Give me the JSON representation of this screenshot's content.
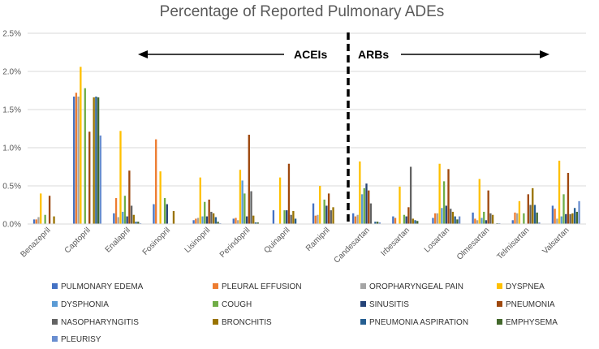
{
  "chart_data": {
    "type": "bar",
    "title": "Percentage of Reported Pulmonary ADEs",
    "xlabel": "",
    "ylabel": "",
    "ylim": [
      0,
      2.5
    ],
    "yticks": [
      "0.0%",
      "0.5%",
      "1.0%",
      "1.5%",
      "2.0%",
      "2.5%"
    ],
    "categories": [
      "Benazepril",
      "Captopril",
      "Enalapril",
      "Fosinopril",
      "Lisinopril",
      "Perindopril",
      "Quinapril",
      "Ramipril",
      "Candesartan",
      "Irbesartan",
      "Losartan",
      "Olmesartan",
      "Telmisartan",
      "Valsartan"
    ],
    "annotations": {
      "acei_label": "ACEIs",
      "arb_label": "ARBs"
    },
    "legend_position": "bottom",
    "series": [
      {
        "name": "PULMONARY EDEMA",
        "color": "#4472C4",
        "values": [
          0.06,
          1.67,
          0.14,
          0.26,
          0.05,
          0.07,
          0.18,
          0.27,
          0.14,
          0.1,
          0.08,
          0.15,
          0.05,
          0.24
        ]
      },
      {
        "name": "PLEURAL EFFUSION",
        "color": "#ED7D31",
        "values": [
          0.06,
          1.72,
          0.34,
          1.11,
          0.07,
          0.08,
          0.0,
          0.11,
          0.1,
          0.08,
          0.14,
          0.07,
          0.15,
          0.2
        ]
      },
      {
        "name": "OROPHARYNGEAL PAIN",
        "color": "#A5A5A5",
        "values": [
          0.09,
          1.67,
          0.09,
          0.0,
          0.08,
          0.05,
          0.0,
          0.12,
          0.12,
          0.0,
          0.14,
          0.05,
          0.14,
          0.07
        ]
      },
      {
        "name": "DYSPNEA",
        "color": "#FFC000",
        "values": [
          0.4,
          2.06,
          1.22,
          0.69,
          0.61,
          0.71,
          0.61,
          0.5,
          0.82,
          0.49,
          0.79,
          0.59,
          0.3,
          0.83
        ]
      },
      {
        "name": "DYSPHONIA",
        "color": "#5B9BD5",
        "values": [
          0.0,
          0.0,
          0.16,
          0.0,
          0.1,
          0.57,
          0.0,
          0.0,
          0.39,
          0.0,
          0.21,
          0.08,
          0.0,
          0.1
        ]
      },
      {
        "name": "COUGH",
        "color": "#70AD47",
        "values": [
          0.12,
          1.78,
          0.37,
          0.34,
          0.29,
          0.4,
          0.18,
          0.32,
          0.47,
          0.12,
          0.56,
          0.16,
          0.14,
          0.39
        ]
      },
      {
        "name": "SINUSITIS",
        "color": "#264478",
        "values": [
          0.0,
          0.0,
          0.1,
          0.26,
          0.1,
          0.1,
          0.18,
          0.24,
          0.53,
          0.1,
          0.24,
          0.05,
          0.0,
          0.13
        ]
      },
      {
        "name": "PNEUMONIA",
        "color": "#9E480E",
        "values": [
          0.37,
          1.21,
          0.7,
          0.0,
          0.32,
          1.17,
          0.79,
          0.4,
          0.44,
          0.22,
          0.72,
          0.44,
          0.39,
          0.67
        ]
      },
      {
        "name": "NASOPHARYNGITIS",
        "color": "#636363",
        "values": [
          0.0,
          0.0,
          0.24,
          0.0,
          0.16,
          0.43,
          0.12,
          0.18,
          0.27,
          0.75,
          0.2,
          0.14,
          0.25,
          0.13
        ]
      },
      {
        "name": "BRONCHITIS",
        "color": "#997300",
        "values": [
          0.1,
          1.66,
          0.12,
          0.17,
          0.14,
          0.11,
          0.17,
          0.22,
          0.0,
          0.07,
          0.16,
          0.12,
          0.47,
          0.14
        ]
      },
      {
        "name": "PNEUMONIA ASPIRATION",
        "color": "#255E91",
        "values": [
          0.0,
          1.67,
          0.03,
          0.0,
          0.09,
          0.02,
          0.07,
          0.0,
          0.03,
          0.05,
          0.1,
          0.0,
          0.25,
          0.21
        ]
      },
      {
        "name": "EMPHYSEMA",
        "color": "#43682B",
        "values": [
          0.0,
          1.66,
          0.03,
          0.0,
          0.03,
          0.02,
          0.0,
          0.0,
          0.03,
          0.04,
          0.06,
          0.01,
          0.15,
          0.16
        ]
      },
      {
        "name": "PLEURISY",
        "color": "#698ED0",
        "values": [
          0.0,
          1.16,
          0.01,
          0.0,
          0.01,
          0.0,
          0.0,
          0.0,
          0.02,
          0.0,
          0.1,
          0.01,
          0.02,
          0.3
        ]
      }
    ]
  }
}
